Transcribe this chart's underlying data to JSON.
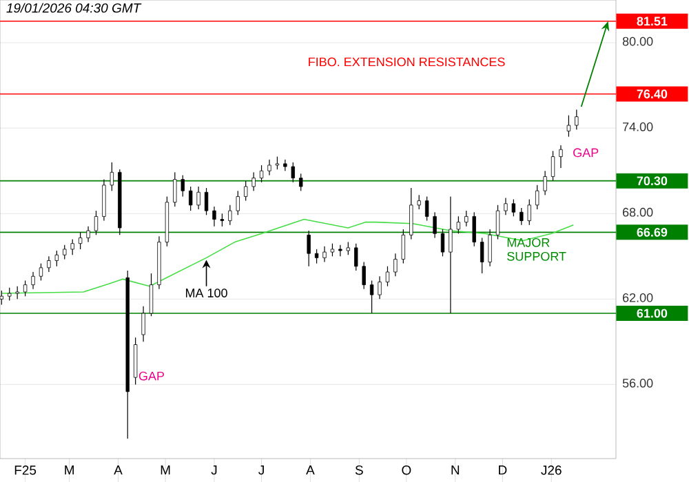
{
  "chart_data": {
    "type": "candlestick",
    "title": "19/01/2026 04:30 GMT",
    "color": "#000000",
    "x": [
      "2025-01-17",
      "2025-01-22",
      "2025-01-27",
      "2025-02-01",
      "2025-02-06",
      "2025-02-11",
      "2025-02-16",
      "2025-02-21",
      "2025-02-26",
      "2025-03-03",
      "2025-03-08",
      "2025-03-13",
      "2025-03-18",
      "2025-03-23",
      "2025-03-28",
      "2025-04-02",
      "2025-04-07",
      "2025-04-12",
      "2025-04-17",
      "2025-04-22",
      "2025-04-27",
      "2025-05-02",
      "2025-05-07",
      "2025-05-12",
      "2025-05-17",
      "2025-05-22",
      "2025-05-27",
      "2025-06-01",
      "2025-06-06",
      "2025-06-11",
      "2025-06-16",
      "2025-06-21",
      "2025-06-26",
      "2025-07-01",
      "2025-07-06",
      "2025-07-11",
      "2025-07-16",
      "2025-07-21",
      "2025-07-26",
      "2025-07-31",
      "2025-08-05",
      "2025-08-10",
      "2025-08-15",
      "2025-08-20",
      "2025-08-25",
      "2025-08-30",
      "2025-09-04",
      "2025-09-09",
      "2025-09-14",
      "2025-09-19",
      "2025-09-24",
      "2025-09-29",
      "2025-10-04",
      "2025-10-09",
      "2025-10-14",
      "2025-10-19",
      "2025-10-24",
      "2025-10-29",
      "2025-11-03",
      "2025-11-08",
      "2025-11-13",
      "2025-11-18",
      "2025-11-23",
      "2025-11-28",
      "2025-12-03",
      "2025-12-08",
      "2025-12-13",
      "2025-12-18",
      "2025-12-23",
      "2025-12-28",
      "2026-01-02",
      "2026-01-07",
      "2026-01-12",
      "2026-01-17"
    ],
    "ohlc": [
      [
        62.0,
        62.6,
        61.6,
        62.2
      ],
      [
        62.2,
        62.8,
        61.9,
        62.4
      ],
      [
        62.4,
        62.9,
        62.0,
        62.5
      ],
      [
        62.5,
        63.3,
        62.2,
        63.0
      ],
      [
        63.0,
        63.9,
        62.7,
        63.6
      ],
      [
        63.6,
        64.5,
        63.3,
        64.2
      ],
      [
        64.2,
        65.0,
        63.9,
        64.7
      ],
      [
        64.7,
        65.4,
        64.3,
        65.1
      ],
      [
        65.1,
        65.8,
        64.8,
        65.5
      ],
      [
        65.5,
        66.2,
        65.1,
        65.9
      ],
      [
        65.9,
        66.7,
        65.5,
        66.3
      ],
      [
        66.3,
        67.1,
        66.0,
        66.8
      ],
      [
        66.8,
        68.2,
        66.5,
        67.8
      ],
      [
        67.8,
        70.4,
        67.5,
        70.0
      ],
      [
        70.0,
        71.6,
        69.6,
        70.9
      ],
      [
        70.9,
        71.1,
        66.5,
        67.0
      ],
      [
        63.5,
        64.0,
        52.2,
        55.5
      ],
      [
        56.5,
        59.3,
        56.0,
        58.8
      ],
      [
        59.5,
        61.5,
        59.0,
        61.0
      ],
      [
        61.0,
        63.8,
        60.8,
        63.0
      ],
      [
        63.0,
        66.4,
        62.7,
        66.0
      ],
      [
        66.0,
        69.2,
        65.7,
        68.8
      ],
      [
        68.8,
        70.9,
        68.5,
        70.4
      ],
      [
        70.4,
        70.7,
        69.2,
        69.6
      ],
      [
        69.6,
        69.9,
        68.2,
        68.6
      ],
      [
        68.6,
        69.9,
        68.3,
        69.5
      ],
      [
        69.5,
        69.8,
        67.9,
        68.2
      ],
      [
        68.2,
        68.5,
        67.1,
        67.6
      ],
      [
        67.6,
        68.0,
        67.1,
        67.5
      ],
      [
        67.5,
        68.6,
        67.2,
        68.2
      ],
      [
        68.2,
        69.6,
        67.9,
        69.2
      ],
      [
        69.2,
        70.3,
        68.9,
        69.9
      ],
      [
        69.9,
        70.9,
        69.6,
        70.5
      ],
      [
        70.5,
        71.4,
        70.2,
        71.0
      ],
      [
        71.0,
        71.8,
        70.7,
        71.4
      ],
      [
        71.4,
        72.0,
        71.1,
        71.5
      ],
      [
        71.5,
        71.8,
        71.0,
        71.3
      ],
      [
        71.3,
        71.6,
        70.2,
        70.5
      ],
      [
        70.5,
        70.8,
        69.6,
        69.9
      ],
      [
        66.5,
        66.8,
        64.3,
        65.2
      ],
      [
        65.2,
        65.5,
        64.5,
        64.9
      ],
      [
        64.9,
        65.7,
        64.6,
        65.3
      ],
      [
        65.3,
        65.9,
        65.0,
        65.5
      ],
      [
        65.5,
        65.8,
        65.0,
        65.4
      ],
      [
        65.4,
        66.0,
        65.1,
        65.6
      ],
      [
        65.6,
        65.9,
        64.0,
        64.3
      ],
      [
        64.3,
        64.6,
        62.7,
        63.0
      ],
      [
        63.0,
        63.3,
        61.0,
        62.3
      ],
      [
        62.3,
        63.6,
        62.0,
        63.2
      ],
      [
        63.2,
        64.3,
        62.9,
        63.9
      ],
      [
        63.9,
        65.2,
        63.6,
        64.8
      ],
      [
        64.8,
        66.9,
        64.5,
        66.5
      ],
      [
        66.5,
        69.8,
        66.2,
        68.6
      ],
      [
        68.6,
        69.3,
        68.3,
        68.9
      ],
      [
        68.9,
        69.2,
        67.5,
        67.8
      ],
      [
        67.8,
        68.1,
        66.3,
        66.6
      ],
      [
        66.6,
        66.9,
        65.0,
        65.3
      ],
      [
        65.3,
        69.2,
        61.0,
        66.9
      ],
      [
        66.9,
        67.8,
        66.6,
        67.4
      ],
      [
        67.4,
        68.2,
        67.1,
        67.8
      ],
      [
        67.8,
        68.1,
        65.7,
        66.0
      ],
      [
        66.0,
        66.3,
        63.8,
        64.6
      ],
      [
        64.6,
        66.9,
        64.3,
        66.5
      ],
      [
        66.5,
        68.6,
        66.2,
        68.2
      ],
      [
        68.2,
        69.1,
        67.9,
        68.7
      ],
      [
        68.7,
        69.0,
        67.8,
        68.1
      ],
      [
        68.1,
        68.4,
        67.2,
        67.5
      ],
      [
        67.5,
        69.0,
        67.2,
        68.6
      ],
      [
        68.6,
        70.0,
        68.3,
        69.6
      ],
      [
        69.6,
        71.0,
        69.3,
        70.6
      ],
      [
        70.6,
        72.4,
        70.3,
        72.0
      ],
      [
        72.0,
        72.8,
        71.2,
        72.5
      ],
      [
        73.8,
        74.9,
        73.4,
        74.2
      ],
      [
        74.2,
        75.3,
        73.9,
        74.8
      ]
    ],
    "series": [
      {
        "name": "MA 100",
        "type": "line",
        "color": "#44dd44",
        "x": [
          "2025-01-17",
          "2025-03-10",
          "2025-03-27",
          "2025-04-04",
          "2025-04-21",
          "2025-05-27",
          "2025-06-14",
          "2025-07-01",
          "2025-07-28",
          "2025-08-25",
          "2025-09-05",
          "2025-09-12",
          "2025-10-05",
          "2025-10-29",
          "2025-11-20",
          "2025-12-14",
          "2026-01-01",
          "2026-01-15"
        ],
        "values": [
          62.4,
          62.5,
          63.1,
          63.4,
          62.9,
          64.9,
          66.0,
          66.6,
          67.6,
          67.0,
          67.4,
          67.4,
          67.3,
          66.8,
          66.6,
          66.1,
          66.6,
          67.2
        ]
      }
    ],
    "xlim": [
      "2025-01-16",
      "2026-02-11"
    ],
    "xticks": [
      {
        "value": "2025-02-01",
        "label": "F25"
      },
      {
        "value": "2025-03-01",
        "label": "M"
      },
      {
        "value": "2025-04-01",
        "label": "A"
      },
      {
        "value": "2025-05-01",
        "label": "M"
      },
      {
        "value": "2025-06-01",
        "label": "J"
      },
      {
        "value": "2025-07-01",
        "label": "J"
      },
      {
        "value": "2025-08-01",
        "label": "A"
      },
      {
        "value": "2025-09-01",
        "label": "S"
      },
      {
        "value": "2025-10-01",
        "label": "O"
      },
      {
        "value": "2025-11-01",
        "label": "N"
      },
      {
        "value": "2025-12-01",
        "label": "D"
      },
      {
        "value": "2026-01-01",
        "label": "J26"
      }
    ],
    "ylim": [
      50.8,
      83
    ],
    "yticks": [
      {
        "value": 56,
        "label": "56.00"
      },
      {
        "value": 62,
        "label": "62.00"
      },
      {
        "value": 68,
        "label": "68.00"
      },
      {
        "value": 74,
        "label": "74.00"
      },
      {
        "value": 80,
        "label": "80.00"
      }
    ],
    "grid": "y",
    "ref_lines": [
      {
        "axis": "y",
        "value": 81.51,
        "label": "81.51",
        "color": "#ff0000"
      },
      {
        "axis": "y",
        "value": 76.4,
        "label": "76.40",
        "color": "#ff0000"
      },
      {
        "axis": "y",
        "value": 70.3,
        "label": "70.30",
        "color": "#008000"
      },
      {
        "axis": "y",
        "value": 66.69,
        "label": "66.69",
        "color": "#008000"
      },
      {
        "axis": "y",
        "value": 61.0,
        "label": "61.00",
        "color": "#008000"
      }
    ],
    "annotations": [
      "FIBO. EXTENSION RESISTANCES",
      "GAP",
      "GAP",
      "MAJOR SUPPORT"
    ]
  }
}
